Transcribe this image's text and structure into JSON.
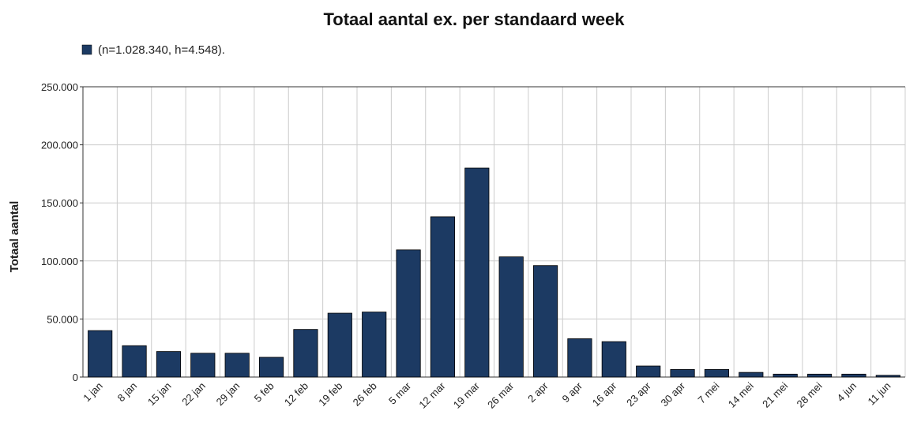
{
  "chart_data": {
    "type": "bar",
    "title": "Totaal aantal ex. per standaard week",
    "legend": "(n=1.028.340, h=4.548).",
    "ylabel": "Totaal aantal",
    "categories": [
      "1 jan",
      "8 jan",
      "15 jan",
      "22 jan",
      "29 jan",
      "5 feb",
      "12 feb",
      "19 feb",
      "26 feb",
      "5 mar",
      "12 mar",
      "19 mar",
      "26 mar",
      "2 apr",
      "9 apr",
      "16 apr",
      "23 apr",
      "30 apr",
      "7 mei",
      "14 mei",
      "21 mei",
      "28 mei",
      "4 jun",
      "11 jun"
    ],
    "values": [
      40000,
      27000,
      22000,
      20500,
      20500,
      17000,
      41000,
      55000,
      56000,
      109500,
      138000,
      180000,
      103500,
      96000,
      33000,
      30500,
      9500,
      6500,
      6500,
      4000,
      2500,
      2500,
      2500,
      1500
    ],
    "color": "#1c3a63",
    "ylim": [
      0,
      250000
    ],
    "yticks": [
      0,
      {
        "value": 50000,
        "label": "50.000"
      },
      {
        "value": 100000,
        "label": "100.000"
      },
      {
        "value": 150000,
        "label": "150.000"
      },
      {
        "value": 200000,
        "label": "200.000"
      },
      {
        "value": 250000,
        "label": "250.000"
      }
    ],
    "grid": true
  }
}
